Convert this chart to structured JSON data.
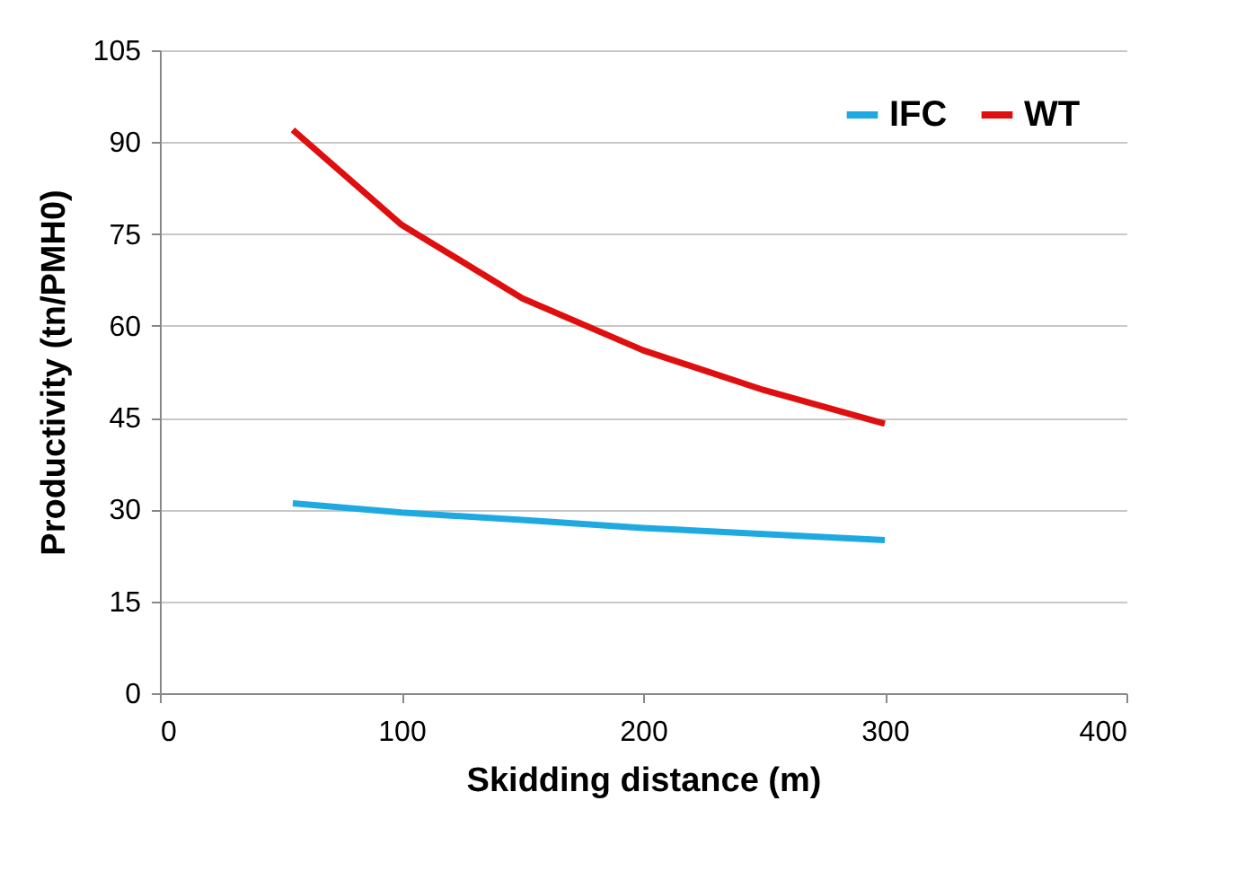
{
  "chart_data": {
    "type": "line",
    "xlabel": "Skidding distance (m)",
    "ylabel": "Productivity (tn/PMH0)",
    "series": [
      {
        "name": "IFC",
        "color": "#1fa9e1",
        "x": [
          55,
          100,
          150,
          200,
          250,
          300
        ],
        "values": [
          31,
          29.5,
          28.3,
          27,
          26,
          25
        ]
      },
      {
        "name": "WT",
        "color": "#e00f0f",
        "x": [
          55,
          100,
          150,
          200,
          250,
          300
        ],
        "values": [
          92,
          76.5,
          64.5,
          56,
          49.5,
          44
        ]
      }
    ],
    "xlim": [
      0,
      400
    ],
    "xticks": [
      0,
      100,
      200,
      300,
      400
    ],
    "ylim": [
      0,
      105
    ],
    "yticks": [
      0,
      15,
      30,
      45,
      60,
      75,
      90,
      105
    ],
    "grid": "y",
    "legend": "top right",
    "marker": "none",
    "line_style": "solid"
  }
}
